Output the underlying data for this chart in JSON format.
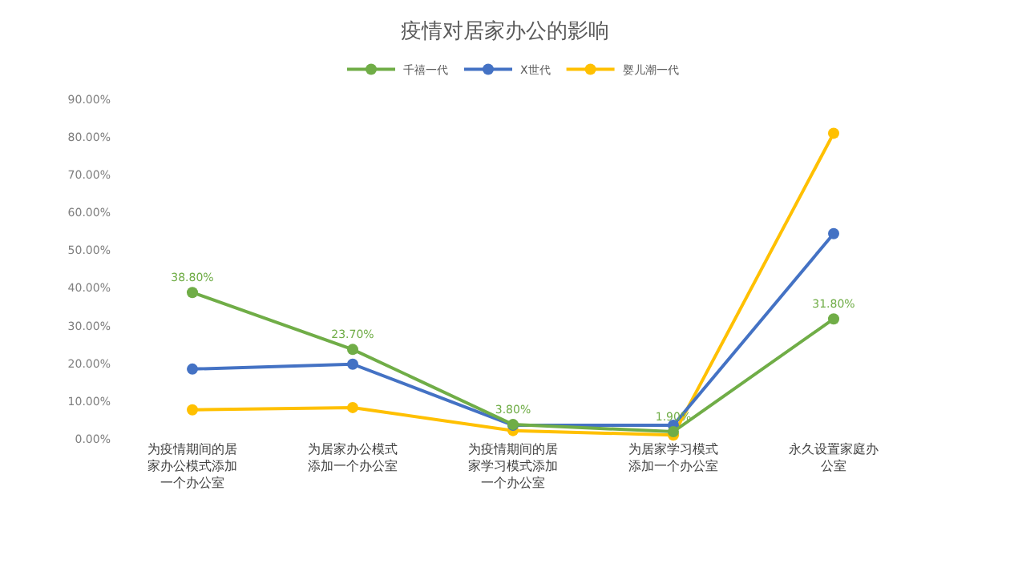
{
  "chart_data": {
    "type": "line",
    "title": "疫情对居家办公的影响",
    "categories": [
      "为疫情期间的居家办公模式添加一个办公室",
      "为居家办公模式添加一个办公室",
      "为疫情期间的居家学习模式添加一个办公室",
      "为居家学习模式添加一个办公室",
      "永久设置家庭办公室"
    ],
    "series": [
      {
        "name": "千禧一代",
        "color": "#70ad47",
        "values": [
          38.8,
          23.7,
          3.8,
          1.9,
          31.8
        ],
        "value_labels": [
          "38.80%",
          "23.70%",
          "3.80%",
          "1.90%",
          "31.80%"
        ]
      },
      {
        "name": "X世代",
        "color": "#4472c4",
        "values": [
          18.5,
          19.8,
          3.6,
          3.6,
          54.4
        ]
      },
      {
        "name": "婴儿潮一代",
        "color": "#ffc000",
        "values": [
          7.7,
          8.3,
          2.2,
          1.0,
          81.0
        ]
      }
    ],
    "ylim": [
      0,
      90
    ],
    "yticks": [
      {
        "value": 0,
        "label": "0.00%"
      },
      {
        "value": 10,
        "label": "10.00%"
      },
      {
        "value": 20,
        "label": "20.00%"
      },
      {
        "value": 30,
        "label": "30.00%"
      },
      {
        "value": 40,
        "label": "40.00%"
      },
      {
        "value": 50,
        "label": "50.00%"
      },
      {
        "value": 60,
        "label": "60.00%"
      },
      {
        "value": 70,
        "label": "70.00%"
      },
      {
        "value": 80,
        "label": "80.00%"
      },
      {
        "value": 90,
        "label": "90.00%"
      }
    ],
    "legend": "top",
    "marker": "circle",
    "line_style": "solid"
  }
}
